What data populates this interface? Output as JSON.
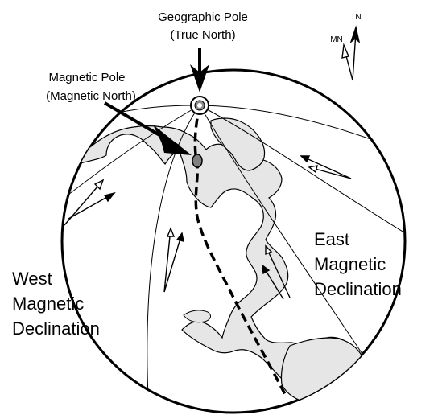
{
  "labels": {
    "geographic_pole": "Geographic Pole",
    "true_north": "(True North)",
    "magnetic_pole": "Magnetic Pole",
    "magnetic_north": "(Magnetic North)",
    "east_line1": "East",
    "east_line2": "Magnetic",
    "east_line3": "Declination",
    "west_line1": "West",
    "west_line2": "Magnetic",
    "west_line3": "Declination",
    "tn": "TN",
    "mn": "MN"
  },
  "colors": {
    "land": "#e6e6e6",
    "line": "#000000",
    "pole_dot": "#808080"
  }
}
